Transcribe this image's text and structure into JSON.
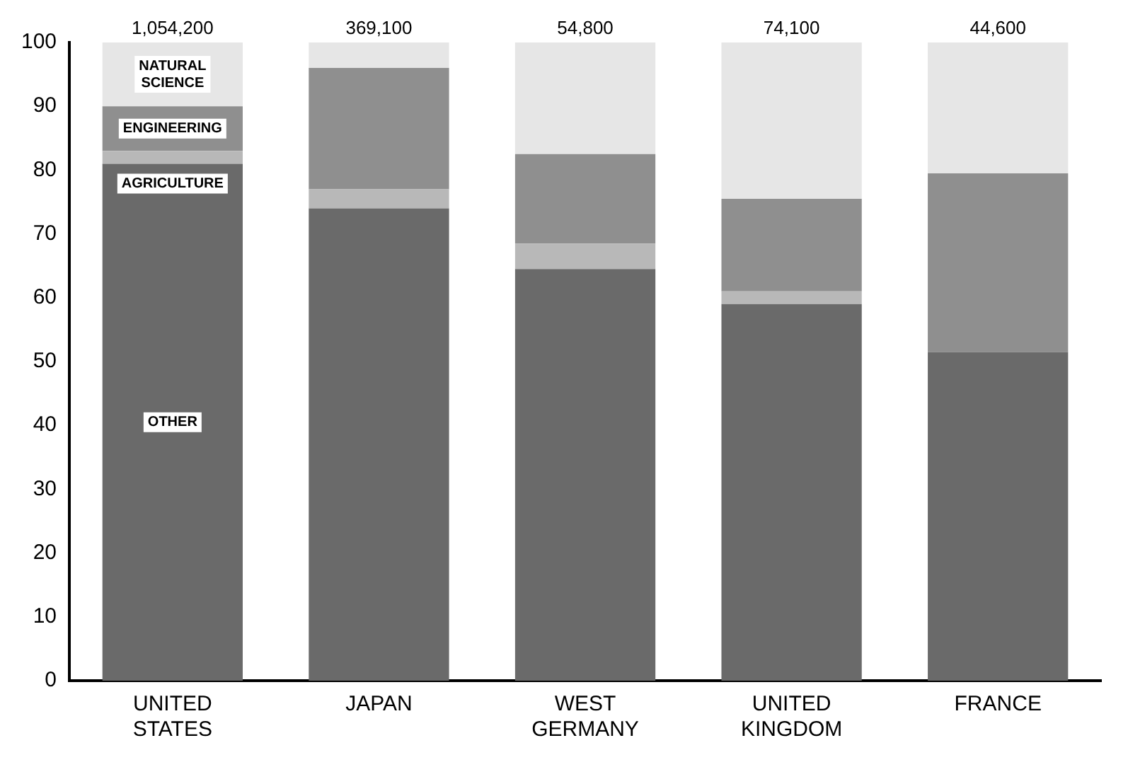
{
  "chart_data": {
    "type": "bar",
    "stacked": true,
    "categories": [
      "UNITED STATES",
      "JAPAN",
      "WEST GERMANY",
      "UNITED KINGDOM",
      "FRANCE"
    ],
    "series": [
      {
        "name": "OTHER",
        "color": "#6a6a6a",
        "values": [
          81,
          74,
          64.5,
          59,
          51.5
        ]
      },
      {
        "name": "AGRICULTURE",
        "color": "#b8b8b8",
        "values": [
          2,
          3,
          4,
          2,
          0
        ]
      },
      {
        "name": "ENGINEERING",
        "color": "#8f8f8f",
        "values": [
          7,
          19,
          14,
          14.5,
          28
        ]
      },
      {
        "name": "NATURAL SCIENCE",
        "color": "#e6e6e6",
        "values": [
          10,
          4,
          17.5,
          24.5,
          20.5
        ]
      }
    ],
    "ylim": [
      0,
      100
    ],
    "yticks": [
      0,
      10,
      20,
      30,
      40,
      50,
      60,
      70,
      80,
      90,
      100
    ],
    "grid": false,
    "legend": false,
    "annotations": [
      {
        "text": "1,054,200",
        "x": "UNITED STATES",
        "y": 100
      },
      {
        "text": "369,100",
        "x": "JAPAN",
        "y": 100
      },
      {
        "text": "54,800",
        "x": "WEST GERMANY",
        "y": 100
      },
      {
        "text": "74,100",
        "x": "UNITED KINGDOM",
        "y": 100
      },
      {
        "text": "44,600",
        "x": "FRANCE",
        "y": 100
      }
    ]
  }
}
